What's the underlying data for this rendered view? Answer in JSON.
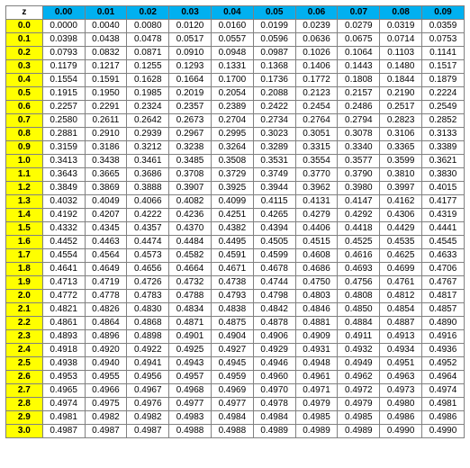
{
  "corner_label": "z",
  "header_bg": "#00b0f0",
  "rowhead_bg": "#ffff00",
  "columns": [
    "0.00",
    "0.01",
    "0.02",
    "0.03",
    "0.04",
    "0.05",
    "0.06",
    "0.07",
    "0.08",
    "0.09"
  ],
  "row_labels": [
    "0.0",
    "0.1",
    "0.2",
    "0.3",
    "0.4",
    "0.5",
    "0.6",
    "0.7",
    "0.8",
    "0.9",
    "1.0",
    "1.1",
    "1.2",
    "1.3",
    "1.4",
    "1.5",
    "1.6",
    "1.7",
    "1.8",
    "1.9",
    "2.0",
    "2.1",
    "2.2",
    "2.3",
    "2.4",
    "2.5",
    "2.6",
    "2.7",
    "2.8",
    "2.9",
    "3.0"
  ],
  "rows": [
    [
      "0.0000",
      "0.0040",
      "0.0080",
      "0.0120",
      "0.0160",
      "0.0199",
      "0.0239",
      "0.0279",
      "0.0319",
      "0.0359"
    ],
    [
      "0.0398",
      "0.0438",
      "0.0478",
      "0.0517",
      "0.0557",
      "0.0596",
      "0.0636",
      "0.0675",
      "0.0714",
      "0.0753"
    ],
    [
      "0.0793",
      "0.0832",
      "0.0871",
      "0.0910",
      "0.0948",
      "0.0987",
      "0.1026",
      "0.1064",
      "0.1103",
      "0.1141"
    ],
    [
      "0.1179",
      "0.1217",
      "0.1255",
      "0.1293",
      "0.1331",
      "0.1368",
      "0.1406",
      "0.1443",
      "0.1480",
      "0.1517"
    ],
    [
      "0.1554",
      "0.1591",
      "0.1628",
      "0.1664",
      "0.1700",
      "0.1736",
      "0.1772",
      "0.1808",
      "0.1844",
      "0.1879"
    ],
    [
      "0.1915",
      "0.1950",
      "0.1985",
      "0.2019",
      "0.2054",
      "0.2088",
      "0.2123",
      "0.2157",
      "0.2190",
      "0.2224"
    ],
    [
      "0.2257",
      "0.2291",
      "0.2324",
      "0.2357",
      "0.2389",
      "0.2422",
      "0.2454",
      "0.2486",
      "0.2517",
      "0.2549"
    ],
    [
      "0.2580",
      "0.2611",
      "0.2642",
      "0.2673",
      "0.2704",
      "0.2734",
      "0.2764",
      "0.2794",
      "0.2823",
      "0.2852"
    ],
    [
      "0.2881",
      "0.2910",
      "0.2939",
      "0.2967",
      "0.2995",
      "0.3023",
      "0.3051",
      "0.3078",
      "0.3106",
      "0.3133"
    ],
    [
      "0.3159",
      "0.3186",
      "0.3212",
      "0.3238",
      "0.3264",
      "0.3289",
      "0.3315",
      "0.3340",
      "0.3365",
      "0.3389"
    ],
    [
      "0.3413",
      "0.3438",
      "0.3461",
      "0.3485",
      "0.3508",
      "0.3531",
      "0.3554",
      "0.3577",
      "0.3599",
      "0.3621"
    ],
    [
      "0.3643",
      "0.3665",
      "0.3686",
      "0.3708",
      "0.3729",
      "0.3749",
      "0.3770",
      "0.3790",
      "0.3810",
      "0.3830"
    ],
    [
      "0.3849",
      "0.3869",
      "0.3888",
      "0.3907",
      "0.3925",
      "0.3944",
      "0.3962",
      "0.3980",
      "0.3997",
      "0.4015"
    ],
    [
      "0.4032",
      "0.4049",
      "0.4066",
      "0.4082",
      "0.4099",
      "0.4115",
      "0.4131",
      "0.4147",
      "0.4162",
      "0.4177"
    ],
    [
      "0.4192",
      "0.4207",
      "0.4222",
      "0.4236",
      "0.4251",
      "0.4265",
      "0.4279",
      "0.4292",
      "0.4306",
      "0.4319"
    ],
    [
      "0.4332",
      "0.4345",
      "0.4357",
      "0.4370",
      "0.4382",
      "0.4394",
      "0.4406",
      "0.4418",
      "0.4429",
      "0.4441"
    ],
    [
      "0.4452",
      "0.4463",
      "0.4474",
      "0.4484",
      "0.4495",
      "0.4505",
      "0.4515",
      "0.4525",
      "0.4535",
      "0.4545"
    ],
    [
      "0.4554",
      "0.4564",
      "0.4573",
      "0.4582",
      "0.4591",
      "0.4599",
      "0.4608",
      "0.4616",
      "0.4625",
      "0.4633"
    ],
    [
      "0.4641",
      "0.4649",
      "0.4656",
      "0.4664",
      "0.4671",
      "0.4678",
      "0.4686",
      "0.4693",
      "0.4699",
      "0.4706"
    ],
    [
      "0.4713",
      "0.4719",
      "0.4726",
      "0.4732",
      "0.4738",
      "0.4744",
      "0.4750",
      "0.4756",
      "0.4761",
      "0.4767"
    ],
    [
      "0.4772",
      "0.4778",
      "0.4783",
      "0.4788",
      "0.4793",
      "0.4798",
      "0.4803",
      "0.4808",
      "0.4812",
      "0.4817"
    ],
    [
      "0.4821",
      "0.4826",
      "0.4830",
      "0.4834",
      "0.4838",
      "0.4842",
      "0.4846",
      "0.4850",
      "0.4854",
      "0.4857"
    ],
    [
      "0.4861",
      "0.4864",
      "0.4868",
      "0.4871",
      "0.4875",
      "0.4878",
      "0.4881",
      "0.4884",
      "0.4887",
      "0.4890"
    ],
    [
      "0.4893",
      "0.4896",
      "0.4898",
      "0.4901",
      "0.4904",
      "0.4906",
      "0.4909",
      "0.4911",
      "0.4913",
      "0.4916"
    ],
    [
      "0.4918",
      "0.4920",
      "0.4922",
      "0.4925",
      "0.4927",
      "0.4929",
      "0.4931",
      "0.4932",
      "0.4934",
      "0.4936"
    ],
    [
      "0.4938",
      "0.4940",
      "0.4941",
      "0.4943",
      "0.4945",
      "0.4946",
      "0.4948",
      "0.4949",
      "0.4951",
      "0.4952"
    ],
    [
      "0.4953",
      "0.4955",
      "0.4956",
      "0.4957",
      "0.4959",
      "0.4960",
      "0.4961",
      "0.4962",
      "0.4963",
      "0.4964"
    ],
    [
      "0.4965",
      "0.4966",
      "0.4967",
      "0.4968",
      "0.4969",
      "0.4970",
      "0.4971",
      "0.4972",
      "0.4973",
      "0.4974"
    ],
    [
      "0.4974",
      "0.4975",
      "0.4976",
      "0.4977",
      "0.4977",
      "0.4978",
      "0.4979",
      "0.4979",
      "0.4980",
      "0.4981"
    ],
    [
      "0.4981",
      "0.4982",
      "0.4982",
      "0.4983",
      "0.4984",
      "0.4984",
      "0.4985",
      "0.4985",
      "0.4986",
      "0.4986"
    ],
    [
      "0.4987",
      "0.4987",
      "0.4987",
      "0.4988",
      "0.4988",
      "0.4989",
      "0.4989",
      "0.4989",
      "0.4990",
      "0.4990"
    ]
  ]
}
